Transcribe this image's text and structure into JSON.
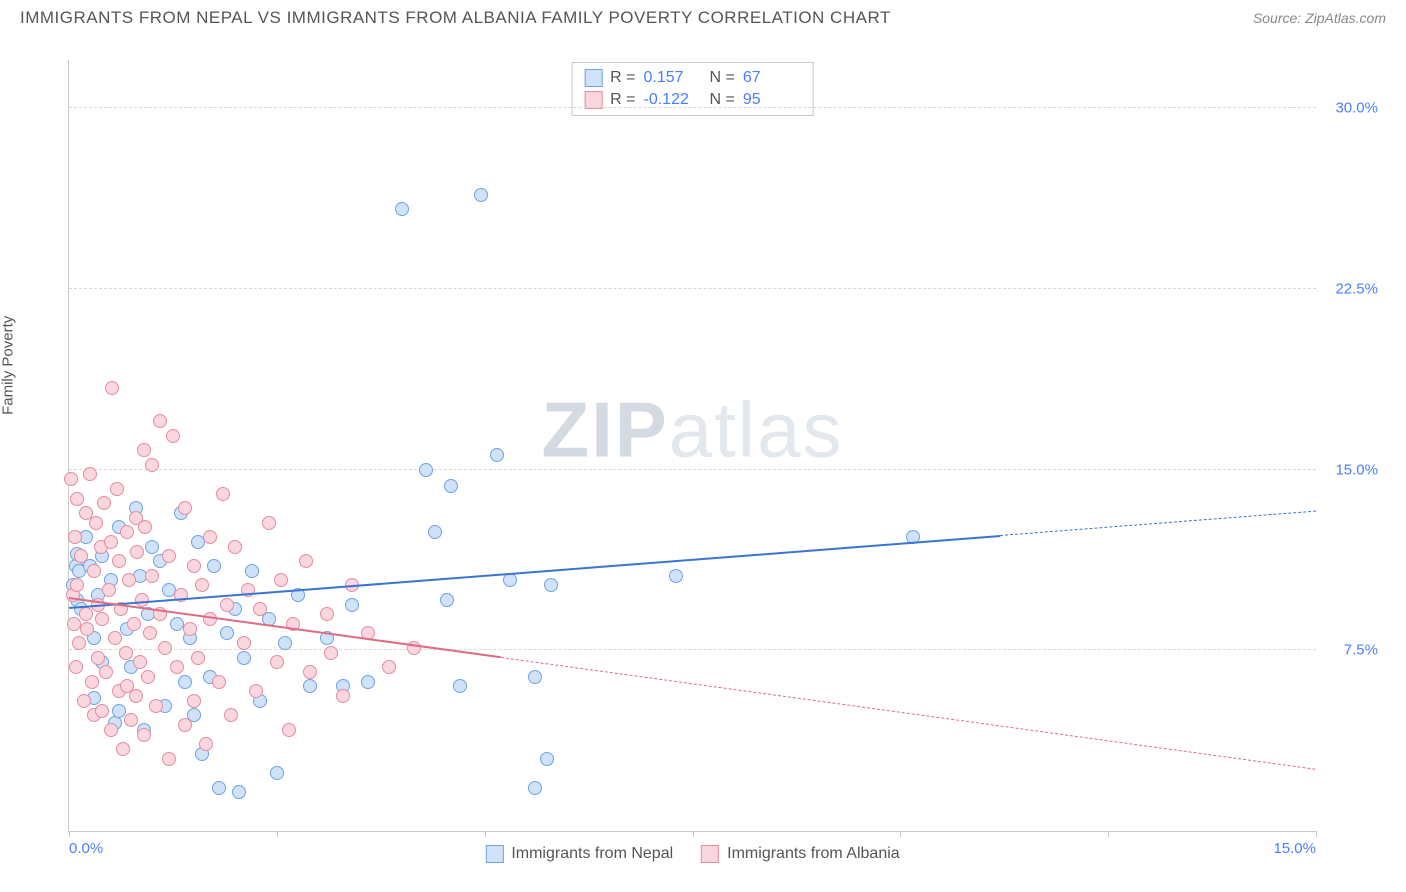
{
  "header": {
    "title": "IMMIGRANTS FROM NEPAL VS IMMIGRANTS FROM ALBANIA FAMILY POVERTY CORRELATION CHART",
    "source_label": "Source: ",
    "source_name": "ZipAtlas.com"
  },
  "watermark": {
    "part1": "ZIP",
    "part2": "atlas"
  },
  "chart": {
    "type": "scatter",
    "ylabel": "Family Poverty",
    "background_color": "#ffffff",
    "grid_color": "#d8d8d8",
    "axis_color": "#c9c9c9",
    "xlim": [
      0,
      15
    ],
    "ylim": [
      0,
      32
    ],
    "xticks": [
      0,
      2.5,
      5,
      7.5,
      10,
      12.5,
      15
    ],
    "xtick_labels": {
      "0": "0.0%",
      "15": "15.0%"
    },
    "yticks": [
      7.5,
      15.0,
      22.5,
      30.0
    ],
    "ytick_labels": [
      "7.5%",
      "15.0%",
      "22.5%",
      "30.0%"
    ],
    "tick_label_color": "#4a7eff",
    "series": [
      {
        "name": "Immigrants from Nepal",
        "marker_fill": "#cfe2f9",
        "marker_stroke": "#6fa3e0",
        "line_color": "#3b74d1",
        "R": "0.157",
        "N": "67",
        "trend": {
          "x1": 0,
          "y1": 9.3,
          "x2": 15,
          "y2": 13.3,
          "dashed_from": 11.2
        },
        "points": [
          [
            0.05,
            10.2
          ],
          [
            0.08,
            11.0
          ],
          [
            0.1,
            9.6
          ],
          [
            0.1,
            11.5
          ],
          [
            0.12,
            10.8
          ],
          [
            0.15,
            9.2
          ],
          [
            0.2,
            12.2
          ],
          [
            0.25,
            11.0
          ],
          [
            0.3,
            8.0
          ],
          [
            0.3,
            5.5
          ],
          [
            0.35,
            9.8
          ],
          [
            0.4,
            7.0
          ],
          [
            0.4,
            11.4
          ],
          [
            0.5,
            10.4
          ],
          [
            0.55,
            4.5
          ],
          [
            0.6,
            5.0
          ],
          [
            0.6,
            12.6
          ],
          [
            0.7,
            8.4
          ],
          [
            0.75,
            6.8
          ],
          [
            0.8,
            13.4
          ],
          [
            0.85,
            10.6
          ],
          [
            0.9,
            4.2
          ],
          [
            0.95,
            9.0
          ],
          [
            1.0,
            11.8
          ],
          [
            1.1,
            11.2
          ],
          [
            1.15,
            5.2
          ],
          [
            1.2,
            10.0
          ],
          [
            1.3,
            8.6
          ],
          [
            1.35,
            13.2
          ],
          [
            1.4,
            6.2
          ],
          [
            1.45,
            8.0
          ],
          [
            1.5,
            4.8
          ],
          [
            1.55,
            12.0
          ],
          [
            1.6,
            3.2
          ],
          [
            1.7,
            6.4
          ],
          [
            1.75,
            11.0
          ],
          [
            1.8,
            1.8
          ],
          [
            1.9,
            8.2
          ],
          [
            2.0,
            9.2
          ],
          [
            2.05,
            1.6
          ],
          [
            2.1,
            7.2
          ],
          [
            2.2,
            10.8
          ],
          [
            2.3,
            5.4
          ],
          [
            2.4,
            8.8
          ],
          [
            2.5,
            2.4
          ],
          [
            2.6,
            7.8
          ],
          [
            2.75,
            9.8
          ],
          [
            2.9,
            6.0
          ],
          [
            3.1,
            8.0
          ],
          [
            3.3,
            6.0
          ],
          [
            3.4,
            9.4
          ],
          [
            3.6,
            6.2
          ],
          [
            4.0,
            25.8
          ],
          [
            4.3,
            15.0
          ],
          [
            4.4,
            12.4
          ],
          [
            4.55,
            9.6
          ],
          [
            4.6,
            14.3
          ],
          [
            4.7,
            6.0
          ],
          [
            4.95,
            26.4
          ],
          [
            5.15,
            15.6
          ],
          [
            5.3,
            10.4
          ],
          [
            5.6,
            6.4
          ],
          [
            5.6,
            1.8
          ],
          [
            5.75,
            3.0
          ],
          [
            5.8,
            10.2
          ],
          [
            7.3,
            10.6
          ],
          [
            10.15,
            12.2
          ]
        ]
      },
      {
        "name": "Immigrants from Albania",
        "marker_fill": "#fad7de",
        "marker_stroke": "#e58ba0",
        "line_color": "#e06b84",
        "R": "-0.122",
        "N": "95",
        "trend": {
          "x1": 0,
          "y1": 9.7,
          "x2": 15,
          "y2": 2.6,
          "dashed_from": 5.2
        },
        "points": [
          [
            0.03,
            14.6
          ],
          [
            0.05,
            9.8
          ],
          [
            0.06,
            8.6
          ],
          [
            0.07,
            12.2
          ],
          [
            0.08,
            6.8
          ],
          [
            0.1,
            10.2
          ],
          [
            0.1,
            13.8
          ],
          [
            0.12,
            7.8
          ],
          [
            0.15,
            11.4
          ],
          [
            0.18,
            5.4
          ],
          [
            0.2,
            9.0
          ],
          [
            0.2,
            13.2
          ],
          [
            0.22,
            8.4
          ],
          [
            0.25,
            14.8
          ],
          [
            0.28,
            6.2
          ],
          [
            0.3,
            10.8
          ],
          [
            0.3,
            4.8
          ],
          [
            0.32,
            12.8
          ],
          [
            0.35,
            9.4
          ],
          [
            0.35,
            7.2
          ],
          [
            0.38,
            11.8
          ],
          [
            0.4,
            5.0
          ],
          [
            0.4,
            8.8
          ],
          [
            0.42,
            13.6
          ],
          [
            0.45,
            6.6
          ],
          [
            0.48,
            10.0
          ],
          [
            0.5,
            4.2
          ],
          [
            0.5,
            12.0
          ],
          [
            0.52,
            18.4
          ],
          [
            0.55,
            8.0
          ],
          [
            0.58,
            14.2
          ],
          [
            0.6,
            5.8
          ],
          [
            0.6,
            11.2
          ],
          [
            0.62,
            9.2
          ],
          [
            0.65,
            3.4
          ],
          [
            0.68,
            7.4
          ],
          [
            0.7,
            12.4
          ],
          [
            0.7,
            6.0
          ],
          [
            0.72,
            10.4
          ],
          [
            0.75,
            4.6
          ],
          [
            0.78,
            8.6
          ],
          [
            0.8,
            13.0
          ],
          [
            0.8,
            5.6
          ],
          [
            0.82,
            11.6
          ],
          [
            0.85,
            7.0
          ],
          [
            0.88,
            9.6
          ],
          [
            0.9,
            4.0
          ],
          [
            0.9,
            15.8
          ],
          [
            0.92,
            12.6
          ],
          [
            0.95,
            6.4
          ],
          [
            0.98,
            8.2
          ],
          [
            1.0,
            15.2
          ],
          [
            1.0,
            10.6
          ],
          [
            1.05,
            5.2
          ],
          [
            1.1,
            17.0
          ],
          [
            1.1,
            9.0
          ],
          [
            1.15,
            7.6
          ],
          [
            1.2,
            3.0
          ],
          [
            1.2,
            11.4
          ],
          [
            1.25,
            16.4
          ],
          [
            1.3,
            6.8
          ],
          [
            1.35,
            9.8
          ],
          [
            1.4,
            4.4
          ],
          [
            1.4,
            13.4
          ],
          [
            1.45,
            8.4
          ],
          [
            1.5,
            11.0
          ],
          [
            1.5,
            5.4
          ],
          [
            1.55,
            7.2
          ],
          [
            1.6,
            10.2
          ],
          [
            1.65,
            3.6
          ],
          [
            1.7,
            12.2
          ],
          [
            1.7,
            8.8
          ],
          [
            1.8,
            6.2
          ],
          [
            1.85,
            14.0
          ],
          [
            1.9,
            9.4
          ],
          [
            1.95,
            4.8
          ],
          [
            2.0,
            11.8
          ],
          [
            2.1,
            7.8
          ],
          [
            2.15,
            10.0
          ],
          [
            2.25,
            5.8
          ],
          [
            2.3,
            9.2
          ],
          [
            2.4,
            12.8
          ],
          [
            2.5,
            7.0
          ],
          [
            2.55,
            10.4
          ],
          [
            2.65,
            4.2
          ],
          [
            2.7,
            8.6
          ],
          [
            2.85,
            11.2
          ],
          [
            2.9,
            6.6
          ],
          [
            3.1,
            9.0
          ],
          [
            3.15,
            7.4
          ],
          [
            3.3,
            5.6
          ],
          [
            3.4,
            10.2
          ],
          [
            3.6,
            8.2
          ],
          [
            3.85,
            6.8
          ],
          [
            4.15,
            7.6
          ]
        ]
      }
    ],
    "legend_bottom": [
      {
        "label": "Immigrants from Nepal",
        "fill": "#cfe2f9",
        "stroke": "#6fa3e0"
      },
      {
        "label": "Immigrants from Albania",
        "fill": "#fad7de",
        "stroke": "#e58ba0"
      }
    ],
    "legend_top": {
      "r_prefix": "R  = ",
      "n_prefix": "N  = "
    }
  }
}
